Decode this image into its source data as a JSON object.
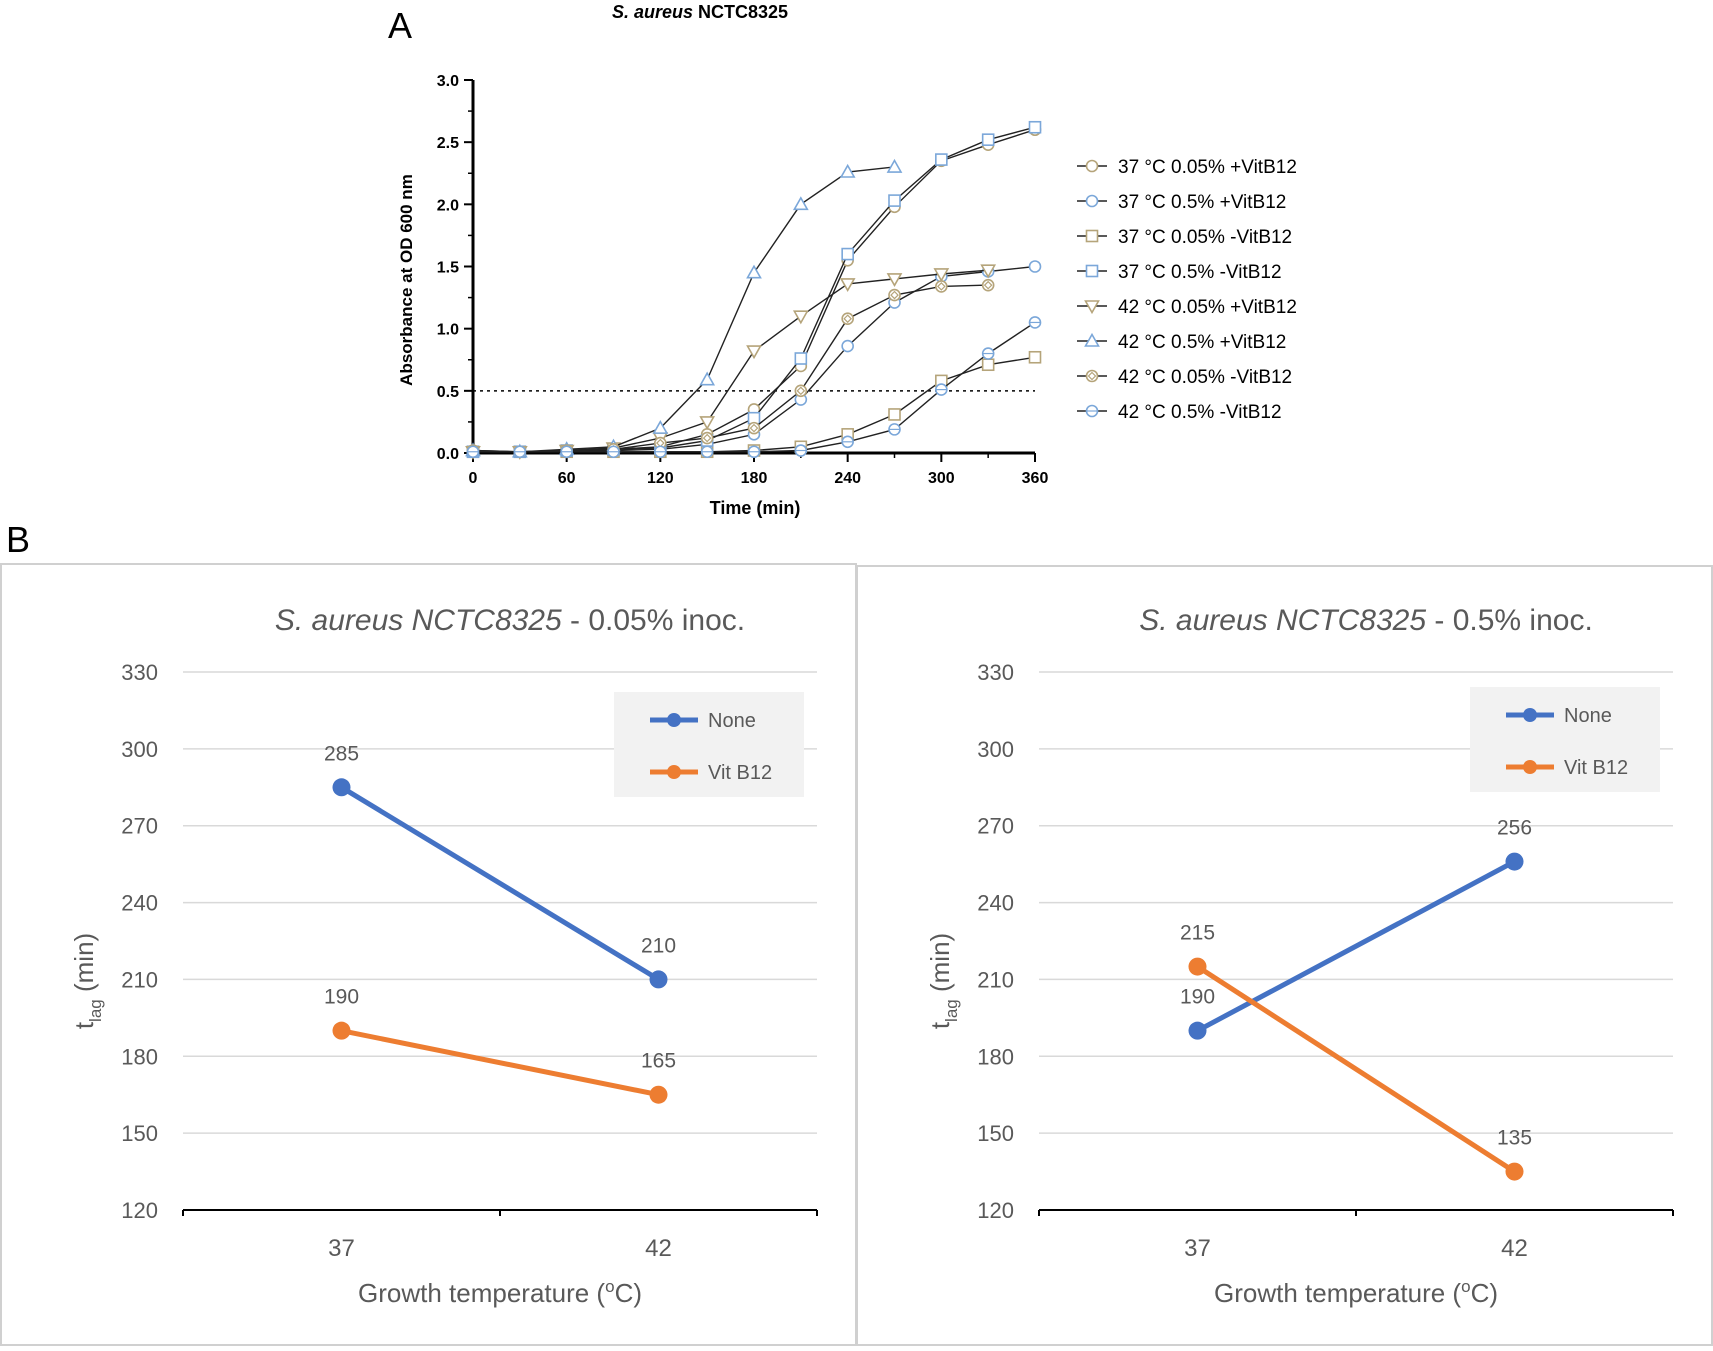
{
  "figure": {
    "panel_a_letter": "A",
    "panel_b_letter": "B"
  },
  "chart_data": [
    {
      "type": "line",
      "panel": "A",
      "title_italic": "S. aureus",
      "title_rest": " NCTC8325",
      "xlabel": "Time (min)",
      "ylabel": "Absorbance at OD 600 nm",
      "xlim": [
        0,
        360
      ],
      "ylim": [
        0,
        3.0
      ],
      "x_ticks": [
        0,
        60,
        120,
        180,
        240,
        300,
        360
      ],
      "y_ticks": [
        "0.0",
        "0.5",
        "1.0",
        "1.5",
        "2.0",
        "2.5",
        "3.0"
      ],
      "threshold": 0.5,
      "legend_position": "right",
      "series": [
        {
          "name": "37 °C 0.05% +VitB12",
          "marker": "circle",
          "color": "#b5a47a",
          "x": [
            0,
            30,
            60,
            90,
            120,
            150,
            180,
            210,
            240,
            270,
            300,
            330,
            360
          ],
          "y": [
            0.01,
            0.01,
            0.02,
            0.03,
            0.05,
            0.15,
            0.35,
            0.7,
            1.55,
            1.98,
            2.35,
            2.48,
            2.6
          ]
        },
        {
          "name": "37 °C 0.5% +VitB12",
          "marker": "circle",
          "color": "#7ba7d9",
          "x": [
            0,
            30,
            60,
            90,
            120,
            150,
            180,
            210,
            240,
            270,
            300,
            330,
            360
          ],
          "y": [
            0.01,
            0.01,
            0.01,
            0.02,
            0.03,
            0.07,
            0.15,
            0.43,
            0.86,
            1.21,
            1.42,
            1.46,
            1.5
          ]
        },
        {
          "name": "37 °C 0.05% -VitB12",
          "marker": "square",
          "color": "#b5a47a",
          "x": [
            0,
            30,
            60,
            90,
            120,
            150,
            180,
            210,
            240,
            270,
            300,
            330,
            360
          ],
          "y": [
            0.01,
            0.01,
            0.01,
            0.01,
            0.01,
            0.01,
            0.02,
            0.05,
            0.15,
            0.31,
            0.58,
            0.71,
            0.77
          ]
        },
        {
          "name": "37 °C 0.5% -VitB12",
          "marker": "square",
          "color": "#7ba7d9",
          "x": [
            0,
            30,
            60,
            90,
            120,
            150,
            180,
            210,
            240,
            270,
            300,
            330,
            360
          ],
          "y": [
            0.01,
            0.01,
            0.02,
            0.03,
            0.04,
            0.1,
            0.28,
            0.76,
            1.6,
            2.03,
            2.36,
            2.52,
            2.62
          ]
        },
        {
          "name": "42 °C 0.05% +VitB12",
          "marker": "triangle-down",
          "color": "#b5a47a",
          "x": [
            0,
            30,
            60,
            90,
            120,
            150,
            180,
            210,
            240,
            270,
            300,
            330
          ],
          "y": [
            0.01,
            0.01,
            0.02,
            0.04,
            0.12,
            0.25,
            0.82,
            1.1,
            1.36,
            1.4,
            1.44,
            1.47
          ]
        },
        {
          "name": "42 °C 0.5% +VitB12",
          "marker": "triangle-up",
          "color": "#7ba7d9",
          "x": [
            0,
            30,
            60,
            90,
            120,
            150,
            180,
            210,
            240,
            270
          ],
          "y": [
            0.02,
            0.01,
            0.03,
            0.05,
            0.2,
            0.59,
            1.45,
            2.0,
            2.26,
            2.3
          ]
        },
        {
          "name": "42 °C 0.05% -VitB12",
          "marker": "diamond-circle",
          "color": "#b5a47a",
          "x": [
            0,
            30,
            60,
            90,
            120,
            150,
            180,
            210,
            240,
            270,
            300,
            330
          ],
          "y": [
            0.02,
            0.01,
            0.02,
            0.03,
            0.08,
            0.12,
            0.2,
            0.5,
            1.08,
            1.27,
            1.34,
            1.35
          ]
        },
        {
          "name": "42 °C 0.5% -VitB12",
          "marker": "crossed-circle",
          "color": "#7ba7d9",
          "x": [
            0,
            30,
            60,
            90,
            120,
            150,
            180,
            210,
            240,
            270,
            300,
            330,
            360
          ],
          "y": [
            0.01,
            0.01,
            0.01,
            0.01,
            0.01,
            0.01,
            0.01,
            0.02,
            0.09,
            0.19,
            0.51,
            0.8,
            1.05
          ]
        }
      ]
    },
    {
      "type": "line",
      "panel": "B-left",
      "title_italic": "S. aureus NCTC8325",
      "title_rest": " - 0.05% inoc.",
      "ylabel_main": "t",
      "ylabel_sub": "lag",
      "ylabel_rest": "  (min)",
      "xlabel_pre": "Growth temperature (",
      "xlabel_sup": "o",
      "xlabel_post": "C)",
      "categories": [
        "37",
        "42"
      ],
      "ylim": [
        120,
        330
      ],
      "y_ticks": [
        "120",
        "150",
        "180",
        "210",
        "240",
        "270",
        "300",
        "330"
      ],
      "legend_position": "top-right",
      "series": [
        {
          "name": "None",
          "color": "#4472c4",
          "values": [
            285,
            210
          ],
          "labels": [
            "285",
            "210"
          ]
        },
        {
          "name": "Vit B12",
          "color": "#ed7d31",
          "values": [
            190,
            165
          ],
          "labels": [
            "190",
            "165"
          ]
        }
      ]
    },
    {
      "type": "line",
      "panel": "B-right",
      "title_italic": "S. aureus NCTC8325",
      "title_rest": " - 0.5% inoc.",
      "ylabel_main": "t",
      "ylabel_sub": "lag",
      "ylabel_rest": "  (min)",
      "xlabel_pre": "Growth temperature (",
      "xlabel_sup": "o",
      "xlabel_post": "C)",
      "categories": [
        "37",
        "42"
      ],
      "ylim": [
        120,
        330
      ],
      "y_ticks": [
        "120",
        "150",
        "180",
        "210",
        "240",
        "270",
        "300",
        "330"
      ],
      "legend_position": "top-right",
      "series": [
        {
          "name": "None",
          "color": "#4472c4",
          "values": [
            190,
            256
          ],
          "labels": [
            "190",
            "256"
          ]
        },
        {
          "name": "Vit B12",
          "color": "#ed7d31",
          "values": [
            215,
            135
          ],
          "labels": [
            "215",
            "135"
          ]
        }
      ]
    }
  ]
}
